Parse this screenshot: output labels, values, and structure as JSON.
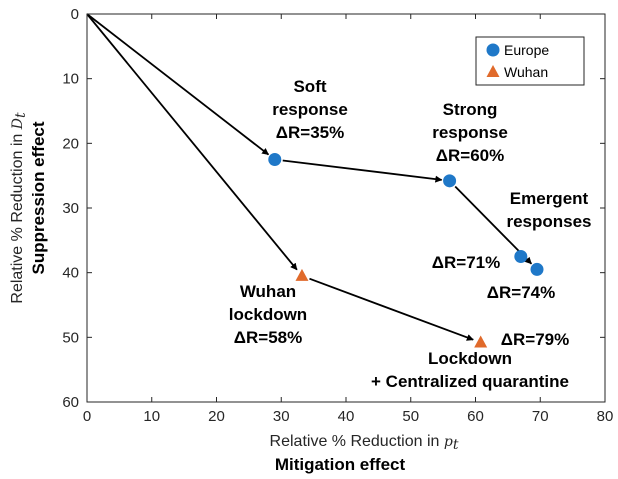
{
  "chart_data": {
    "type": "scatter",
    "xlim": [
      0,
      80
    ],
    "ylim": [
      0,
      60
    ],
    "y_reversed": true,
    "x_ticks": [
      0,
      10,
      20,
      30,
      40,
      50,
      60,
      70,
      80
    ],
    "y_ticks": [
      0,
      10,
      20,
      30,
      40,
      50,
      60
    ],
    "xlabel": {
      "text": "Relative % Reduction  in",
      "var": "p",
      "sub": "t"
    },
    "xlabel_bold": "Mitigation effect",
    "ylabel": {
      "text": "Relative % Reduction  in",
      "var": "D",
      "sub": "t"
    },
    "ylabel_bold": "Suppression effect",
    "legend_position": "top-right",
    "series": [
      {
        "name": "Europe",
        "marker": "circle",
        "color": "#1f78c8",
        "points": [
          {
            "x": 29,
            "y": 22.5
          },
          {
            "x": 56,
            "y": 25.8
          },
          {
            "x": 67,
            "y": 37.5
          },
          {
            "x": 69.5,
            "y": 39.5
          }
        ]
      },
      {
        "name": "Wuhan",
        "marker": "triangle",
        "color": "#e06a2b",
        "points": [
          {
            "x": 33.2,
            "y": 40.5
          },
          {
            "x": 60.8,
            "y": 50.8
          }
        ]
      }
    ],
    "arrows": [
      {
        "from": [
          0,
          0
        ],
        "to": [
          29,
          22.5
        ]
      },
      {
        "from": [
          0,
          0
        ],
        "to": [
          33.2,
          40.5
        ]
      },
      {
        "from": [
          29,
          22.5
        ],
        "to": [
          56,
          25.8
        ]
      },
      {
        "from": [
          56,
          25.8
        ],
        "to": [
          69.5,
          39.5
        ]
      },
      {
        "from": [
          33.2,
          40.5
        ],
        "to": [
          60.8,
          50.8
        ]
      }
    ],
    "annotations": [
      {
        "id": "soft",
        "lines": [
          "Soft",
          "response",
          "ΔR=35%"
        ]
      },
      {
        "id": "strong",
        "lines": [
          "Strong",
          "response",
          "ΔR=60%"
        ]
      },
      {
        "id": "emergent",
        "lines": [
          "Emergent",
          "responses"
        ]
      },
      {
        "id": "r71",
        "lines": [
          "ΔR=71%"
        ]
      },
      {
        "id": "r74",
        "lines": [
          "ΔR=74%"
        ]
      },
      {
        "id": "wuhan",
        "lines": [
          "Wuhan",
          "lockdown",
          "ΔR=58%"
        ]
      },
      {
        "id": "r79",
        "lines": [
          "ΔR=79%"
        ]
      },
      {
        "id": "lockdown",
        "lines": [
          "Lockdown",
          "+ Centralized quarantine"
        ]
      }
    ]
  }
}
